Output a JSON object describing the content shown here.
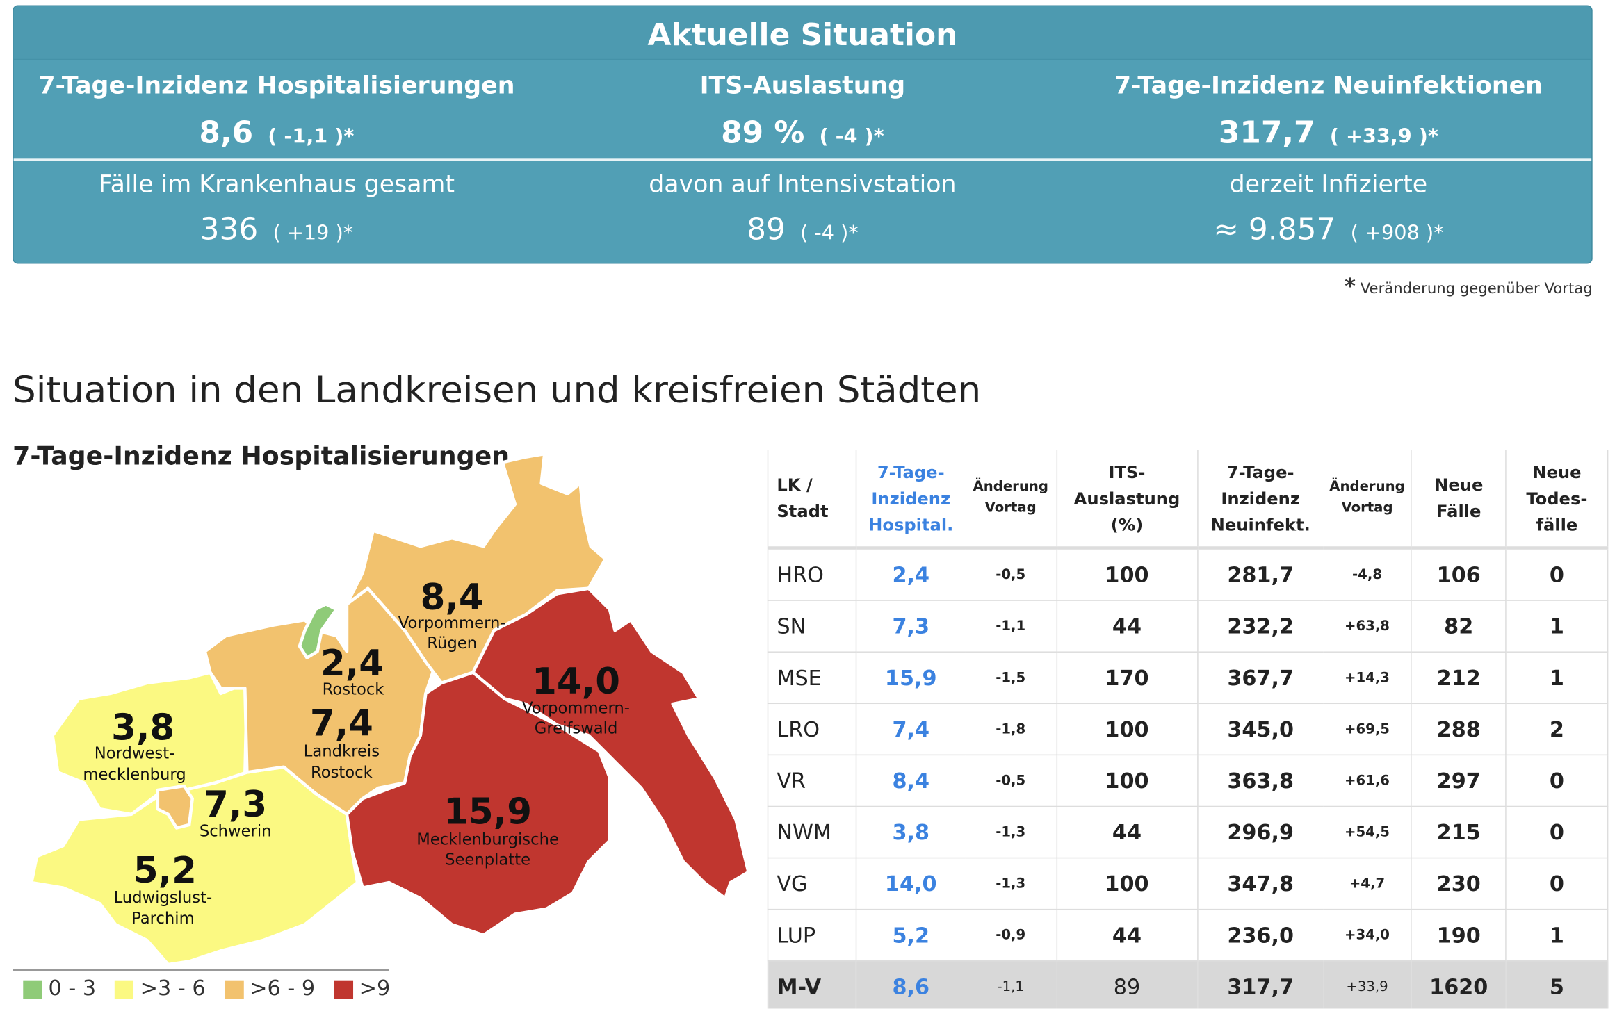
{
  "summary": {
    "title": "Aktuelle Situation",
    "top": [
      {
        "label": "7-Tage-Inzidenz Hospitalisierungen",
        "value": "8,6",
        "change": "( -1,1 )*"
      },
      {
        "label": "ITS-Auslastung",
        "value": "89 %",
        "change": "( -4 )*"
      },
      {
        "label": "7-Tage-Inzidenz Neuinfektionen",
        "value": "317,7",
        "change": "( +33,9 )*"
      }
    ],
    "bottom": [
      {
        "label": "Fälle im Krankenhaus gesamt",
        "value": "336",
        "change": "( +19 )*"
      },
      {
        "label": "davon auf Intensivstation",
        "value": "89",
        "change": "( -4 )*"
      },
      {
        "label": "derzeit Infizierte",
        "value": "≈ 9.857",
        "change": "( +908 )*"
      }
    ],
    "note_star": "*",
    "note": "Veränderung gegenüber Vortag"
  },
  "section_title": "Situation in den Landkreisen und kreisfreien Städten",
  "chart_data": {
    "type": "choropleth-map",
    "title": "7-Tage-Inzidenz Hospitalisierungen",
    "regions": [
      {
        "name": "Vorpommern-Rügen",
        "value": "8,4",
        "lines": [
          "Vorpommern-",
          "Rügen"
        ],
        "class": ">6 - 9"
      },
      {
        "name": "Rostock",
        "value": "2,4",
        "lines": [
          "Rostock"
        ],
        "class": "0 - 3"
      },
      {
        "name": "Landkreis Rostock",
        "value": "7,4",
        "lines": [
          "Landkreis",
          "Rostock"
        ],
        "class": ">6 - 9"
      },
      {
        "name": "Vorpommern-Greifswald",
        "value": "14,0",
        "lines": [
          "Vorpommern-",
          "Greifswald"
        ],
        "class": ">9"
      },
      {
        "name": "Nordwestmecklenburg",
        "value": "3,8",
        "lines": [
          "Nordwest-",
          "mecklenburg"
        ],
        "class": ">3 - 6"
      },
      {
        "name": "Schwerin",
        "value": "7,3",
        "lines": [
          "Schwerin"
        ],
        "class": ">6 - 9"
      },
      {
        "name": "Mecklenburgische Seenplatte",
        "value": "15,9",
        "lines": [
          "Mecklenburgische",
          "Seenplatte"
        ],
        "class": ">9"
      },
      {
        "name": "Ludwigslust-Parchim",
        "value": "5,2",
        "lines": [
          "Ludwigslust-",
          "Parchim"
        ],
        "class": ">3 - 6"
      }
    ],
    "legend": [
      {
        "label": "0 - 3",
        "color": "#8fcb78"
      },
      {
        "label": ">3 - 6",
        "color": "#fbf982"
      },
      {
        "label": ">6 - 9",
        "color": "#f2c26e"
      },
      {
        "label": ">9",
        "color": "#c0362f"
      }
    ]
  },
  "table": {
    "headers": {
      "name": "LK / Stadt",
      "hosp": "7-Tage-Inzidenz Hospital.",
      "hosp_chg": "Änderung Vortag",
      "its": "ITS-Auslastung (%)",
      "inf": "7-Tage-Inzidenz Neuinfekt.",
      "inf_chg": "Änderung Vortag",
      "cases": "Neue Fälle",
      "deaths": "Neue Todes-fälle"
    },
    "rows": [
      [
        "HRO",
        "2,4",
        "-0,5",
        "100",
        "281,7",
        "-4,8",
        "106",
        "0"
      ],
      [
        "SN",
        "7,3",
        "-1,1",
        "44",
        "232,2",
        "+63,8",
        "82",
        "1"
      ],
      [
        "MSE",
        "15,9",
        "-1,5",
        "170",
        "367,7",
        "+14,3",
        "212",
        "1"
      ],
      [
        "LRO",
        "7,4",
        "-1,8",
        "100",
        "345,0",
        "+69,5",
        "288",
        "2"
      ],
      [
        "VR",
        "8,4",
        "-0,5",
        "100",
        "363,8",
        "+61,6",
        "297",
        "0"
      ],
      [
        "NWM",
        "3,8",
        "-1,3",
        "44",
        "296,9",
        "+54,5",
        "215",
        "0"
      ],
      [
        "VG",
        "14,0",
        "-1,3",
        "100",
        "347,8",
        "+4,7",
        "230",
        "0"
      ],
      [
        "LUP",
        "5,2",
        "-0,9",
        "44",
        "236,0",
        "+34,0",
        "190",
        "1"
      ]
    ],
    "total": [
      "M-V",
      "8,6",
      "-1,1",
      "89",
      "317,7",
      "+33,9",
      "1620",
      "5"
    ]
  }
}
